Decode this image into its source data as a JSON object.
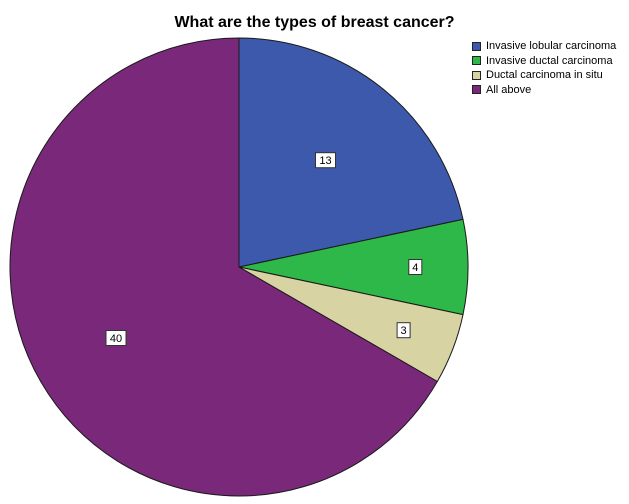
{
  "chart_data": {
    "type": "pie",
    "title": "What are the types of breast cancer?",
    "categories": [
      "Invasive lobular carcinoma",
      "Invasive ductal carcinoma",
      "Ductal carcinoma in situ",
      "All above"
    ],
    "values": [
      13,
      4,
      3,
      40
    ],
    "colors": [
      "#3d59ab",
      "#2eb84a",
      "#d8d3a2",
      "#7a287a"
    ],
    "data_labels": [
      "13",
      "4",
      "3",
      "40"
    ],
    "legend_position": "top-right",
    "start_angle": "12 o'clock",
    "direction": "clockwise"
  }
}
